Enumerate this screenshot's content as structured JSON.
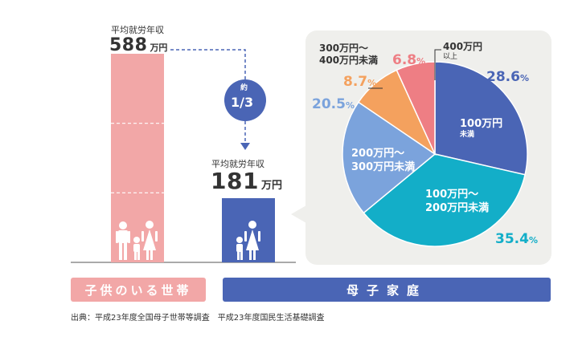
{
  "chart_data": [
    {
      "type": "bar",
      "ylabel": "平均就労年収",
      "unit": "万円",
      "categories": [
        "子供のいる世帯",
        "母子家庭"
      ],
      "values": [
        588,
        181
      ],
      "ratio_label_top": "約",
      "ratio_label": "1/3",
      "colors": [
        "#f2a7a7",
        "#4a65b5"
      ]
    },
    {
      "type": "pie",
      "slices": [
        {
          "label_lines": [
            "100万円",
            "未満"
          ],
          "value": 28.6,
          "color": "#4a65b5"
        },
        {
          "label_lines": [
            "100万円～",
            "200万円未満"
          ],
          "value": 35.4,
          "color": "#13aec8"
        },
        {
          "label_lines": [
            "200万円～",
            "300万円未満"
          ],
          "value": 20.5,
          "color": "#7ba3dc"
        },
        {
          "label_lines": [
            "300万円～",
            "400万円未満"
          ],
          "value": 8.7,
          "color": "#f4a15e"
        },
        {
          "label_lines": [
            "400万円",
            "以上"
          ],
          "value": 6.8,
          "color": "#ee7e84"
        }
      ],
      "percent_suffix": "%"
    }
  ],
  "banners": {
    "left": "子供のいる世帯",
    "right": "母子家庭",
    "left_color": "#f2a7a7",
    "right_color": "#4a65b5"
  },
  "source": "出典：平成23年度全国母子世帯等調査　平成23年度国民生活基礎調査",
  "icons": [
    "family-icon",
    "mother-child-icon"
  ]
}
